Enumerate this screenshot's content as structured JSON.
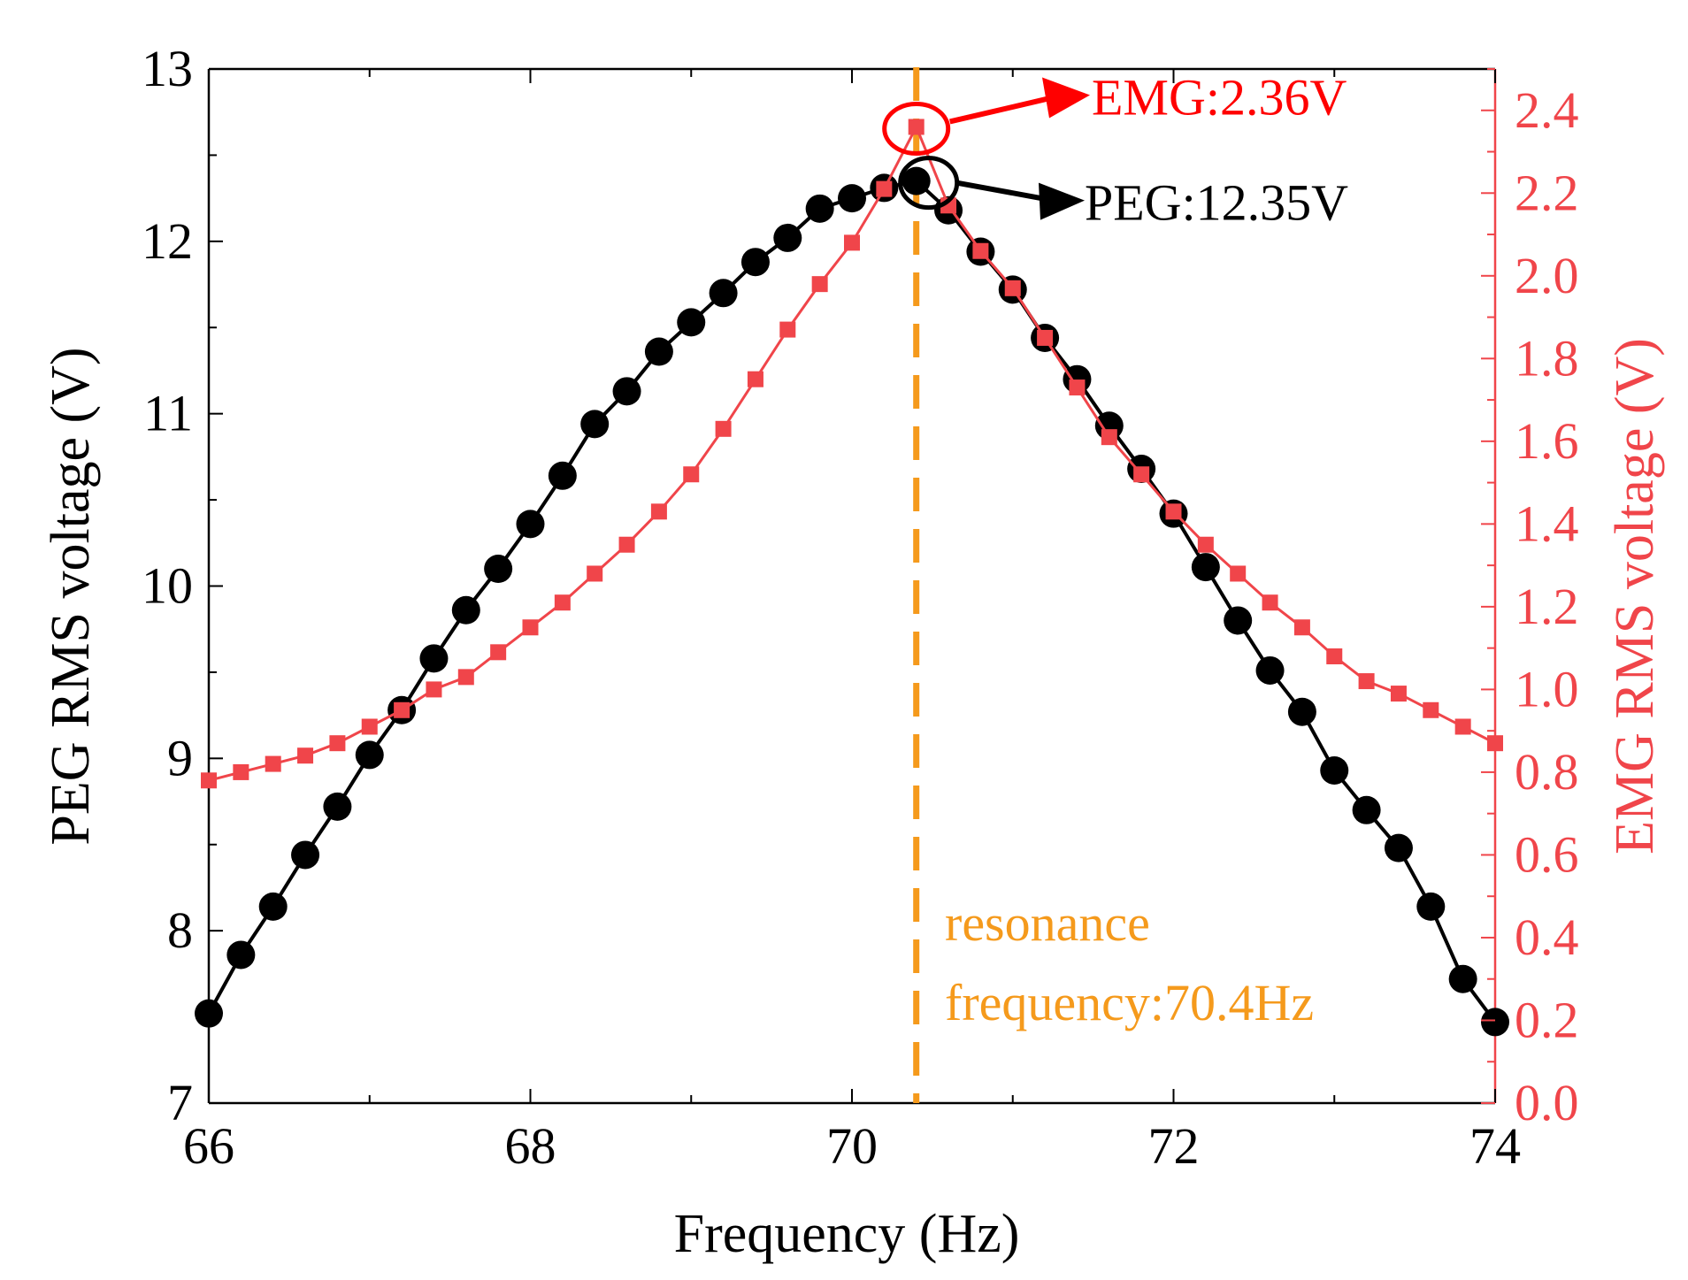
{
  "chart_data": {
    "type": "line",
    "title": "",
    "xlabel": "Frequency (Hz)",
    "ylabel_left": "PEG RMS voltage  (V)",
    "ylabel_right": "EMG RMS voltage (V)",
    "xlim": [
      66,
      74
    ],
    "ylim_left": [
      7,
      13
    ],
    "ylim_right": [
      0.0,
      2.5
    ],
    "x_ticks": [
      "66",
      "68",
      "70",
      "72",
      "74"
    ],
    "y_left_ticks": [
      "7",
      "8",
      "9",
      "10",
      "11",
      "12",
      "13"
    ],
    "y_right_ticks": [
      "0.0",
      "0.2",
      "0.4",
      "0.6",
      "0.8",
      "1.0",
      "1.2",
      "1.4",
      "1.6",
      "1.8",
      "2.0",
      "2.2",
      "2.4"
    ],
    "grid": false,
    "series": [
      {
        "name": "PEG",
        "axis": "left",
        "color": "#000000",
        "marker": "circle",
        "x": [
          66.0,
          66.2,
          66.4,
          66.6,
          66.8,
          67.0,
          67.2,
          67.4,
          67.6,
          67.8,
          68.0,
          68.2,
          68.4,
          68.6,
          68.8,
          69.0,
          69.2,
          69.4,
          69.6,
          69.8,
          70.0,
          70.2,
          70.4,
          70.6,
          70.8,
          71.0,
          71.2,
          71.4,
          71.6,
          71.8,
          72.0,
          72.2,
          72.4,
          72.6,
          72.8,
          73.0,
          73.2,
          73.4,
          73.6,
          73.8,
          74.0
        ],
        "values": [
          7.52,
          7.86,
          8.14,
          8.44,
          8.72,
          9.02,
          9.28,
          9.58,
          9.86,
          10.1,
          10.36,
          10.64,
          10.94,
          11.13,
          11.36,
          11.53,
          11.7,
          11.88,
          12.02,
          12.19,
          12.25,
          12.31,
          12.35,
          12.18,
          11.94,
          11.72,
          11.44,
          11.2,
          10.93,
          10.68,
          10.42,
          10.11,
          9.8,
          9.51,
          9.27,
          8.93,
          8.7,
          8.48,
          8.14,
          7.72,
          7.47
        ]
      },
      {
        "name": "EMG",
        "axis": "right",
        "color": "#f0454a",
        "marker": "square",
        "x": [
          66.0,
          66.2,
          66.4,
          66.6,
          66.8,
          67.0,
          67.2,
          67.4,
          67.6,
          67.8,
          68.0,
          68.2,
          68.4,
          68.6,
          68.8,
          69.0,
          69.2,
          69.4,
          69.6,
          69.8,
          70.0,
          70.2,
          70.4,
          70.6,
          70.8,
          71.0,
          71.2,
          71.4,
          71.6,
          71.8,
          72.0,
          72.2,
          72.4,
          72.6,
          72.8,
          73.0,
          73.2,
          73.4,
          73.6,
          73.8,
          74.0
        ],
        "values": [
          0.78,
          0.8,
          0.82,
          0.84,
          0.87,
          0.91,
          0.95,
          1.0,
          1.03,
          1.09,
          1.15,
          1.21,
          1.28,
          1.35,
          1.43,
          1.52,
          1.63,
          1.75,
          1.87,
          1.98,
          2.08,
          2.21,
          2.36,
          2.17,
          2.06,
          1.97,
          1.85,
          1.73,
          1.61,
          1.52,
          1.43,
          1.35,
          1.28,
          1.21,
          1.15,
          1.08,
          1.02,
          0.99,
          0.95,
          0.91,
          0.87
        ]
      }
    ],
    "resonance": {
      "x": 70.4,
      "color": "#f59a1c",
      "label_line1": "resonance",
      "label_line2": "frequency:70.4Hz"
    },
    "annotations": [
      {
        "text": "EMG:2.36V",
        "color": "#ff0000",
        "series": "EMG",
        "x": 70.4,
        "y": 2.36
      },
      {
        "text": "PEG:12.35V",
        "color": "#000000",
        "series": "PEG",
        "x": 70.4,
        "y": 12.35
      }
    ]
  }
}
